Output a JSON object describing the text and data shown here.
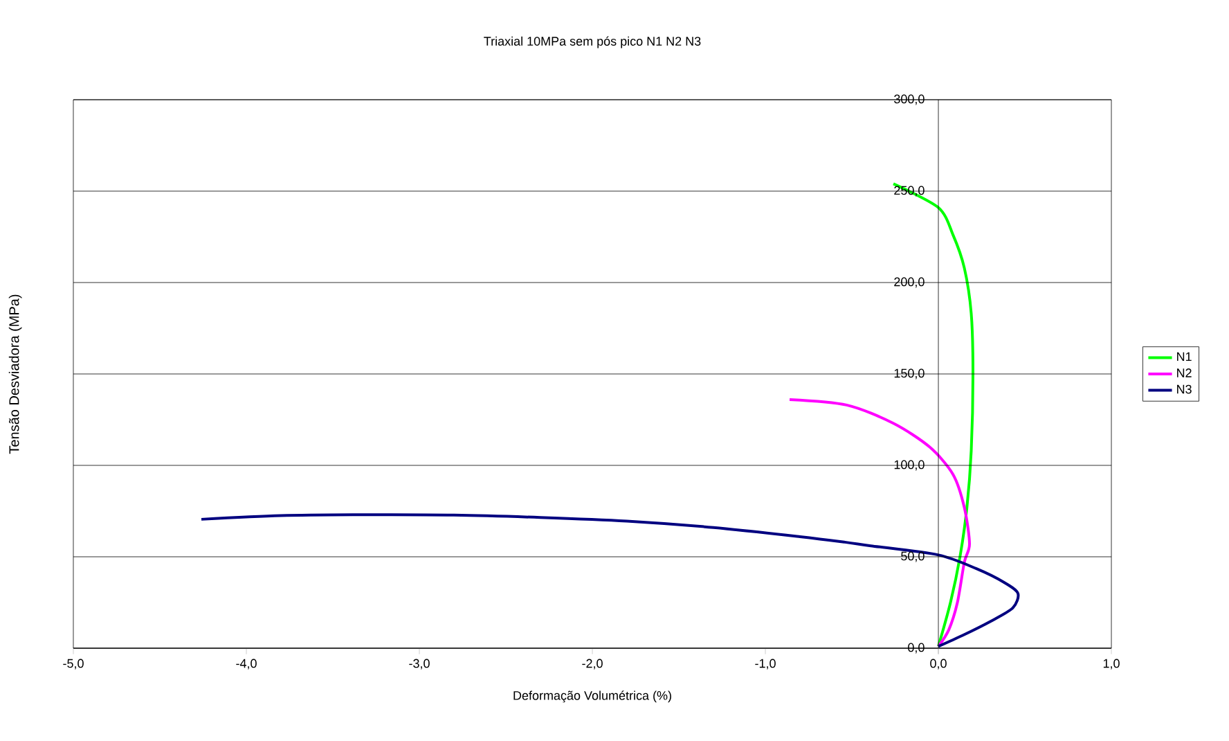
{
  "chart_data": {
    "type": "line",
    "title": "Triaxial 10MPa sem pós pico N1 N2 N3",
    "xlabel": "Deformação Volumétrica (%)",
    "ylabel": "Tensão Desviadora (MPa)",
    "xlim": [
      -5,
      1
    ],
    "ylim": [
      0,
      300
    ],
    "xticks": [
      {
        "value": -5,
        "label": "-5,0"
      },
      {
        "value": -4,
        "label": "-4,0"
      },
      {
        "value": -3,
        "label": "-3,0"
      },
      {
        "value": -2,
        "label": "-2,0"
      },
      {
        "value": -1,
        "label": "-1,0"
      },
      {
        "value": 0,
        "label": "0,0"
      },
      {
        "value": 1,
        "label": "1,0"
      }
    ],
    "yticks": [
      {
        "value": 0,
        "label": "0,0"
      },
      {
        "value": 50,
        "label": "50,0"
      },
      {
        "value": 100,
        "label": "100,0"
      },
      {
        "value": 150,
        "label": "150,0"
      },
      {
        "value": 200,
        "label": "200,0"
      },
      {
        "value": 250,
        "label": "250,0"
      },
      {
        "value": 300,
        "label": "300,0"
      }
    ],
    "grid": "y",
    "legend": "right",
    "marker": "none",
    "line_style": "solid",
    "series": [
      {
        "name": "N1",
        "color": "#00ff00",
        "x": [
          0,
          0.07,
          0.125,
          0.165,
          0.19,
          0.2,
          0.19,
          0.15,
          0.085,
          0,
          -0.26
        ],
        "values": [
          1,
          25,
          50,
          77,
          108,
          150,
          183,
          208,
          226,
          241,
          254
        ]
      },
      {
        "name": "N2",
        "color": "#ff00ff",
        "x": [
          0,
          0.06,
          0.11,
          0.15,
          0.18,
          0.15,
          0.085,
          -0.05,
          -0.26,
          -0.53,
          -0.86
        ],
        "values": [
          1,
          10,
          25,
          47,
          57,
          77,
          95,
          110,
          123,
          133,
          136
        ]
      },
      {
        "name": "N3",
        "color": "#000080",
        "x": [
          0,
          0.14,
          0.3,
          0.43,
          0.46,
          0.38,
          0.22,
          0,
          -0.39,
          -0.54,
          -0.8,
          -1.3,
          -1.8,
          -2.3,
          -2.8,
          -3.3,
          -3.8,
          -4.26
        ],
        "values": [
          1,
          7,
          14.6,
          22,
          30,
          36,
          43.5,
          51,
          56,
          58,
          61,
          66,
          69.5,
          71.5,
          72.8,
          73,
          72.5,
          70.5
        ]
      }
    ]
  }
}
